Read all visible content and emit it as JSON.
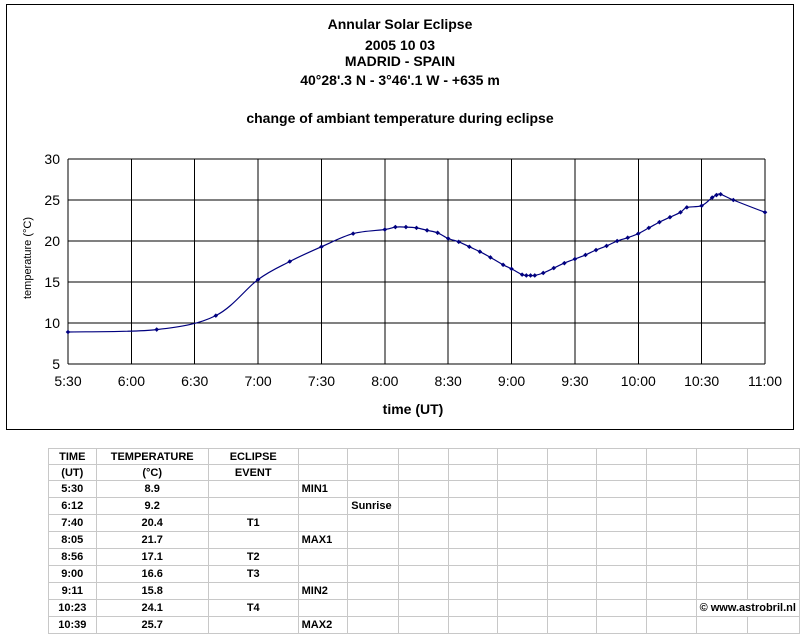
{
  "chart_data": {
    "type": "line",
    "title_lines": [
      "Annular Solar Eclipse",
      "2005 10 03",
      "MADRID - SPAIN",
      "40°28'.3 N - 3°46'.1 W - +635 m"
    ],
    "subtitle": "change of ambiant temperature during eclipse",
    "xlabel": "time (UT)",
    "ylabel": "temperature (°C)",
    "x_ticks": [
      "5:30",
      "6:00",
      "6:30",
      "7:00",
      "7:30",
      "8:00",
      "8:30",
      "9:00",
      "9:30",
      "10:00",
      "10:30",
      "11:00"
    ],
    "xlim": [
      "5:30",
      "11:00"
    ],
    "ylim": [
      5,
      30
    ],
    "y_ticks": [
      5,
      10,
      15,
      20,
      25,
      30
    ],
    "grid": true,
    "legend": "none",
    "series_color": "#00007f",
    "series": [
      {
        "x": [
          "5:30",
          "6:12",
          "6:40",
          "7:00",
          "7:15",
          "7:30",
          "7:45",
          "8:00",
          "8:05",
          "8:10",
          "8:15",
          "8:20",
          "8:25",
          "8:30",
          "8:35",
          "8:40",
          "8:45",
          "8:50",
          "8:56",
          "9:00",
          "9:05",
          "9:07",
          "9:09",
          "9:11",
          "9:15",
          "9:20",
          "9:25",
          "9:30",
          "9:35",
          "9:40",
          "9:45",
          "9:50",
          "9:55",
          "10:00",
          "10:05",
          "10:10",
          "10:15",
          "10:20",
          "10:23",
          "10:30",
          "10:35",
          "10:37",
          "10:39",
          "10:45",
          "11:00"
        ],
        "y": [
          8.9,
          9.2,
          10.9,
          15.3,
          17.5,
          19.3,
          20.9,
          21.4,
          21.7,
          21.7,
          21.6,
          21.3,
          21.0,
          20.3,
          19.9,
          19.3,
          18.7,
          18.0,
          17.1,
          16.6,
          15.9,
          15.8,
          15.8,
          15.8,
          16.1,
          16.7,
          17.3,
          17.8,
          18.3,
          18.9,
          19.4,
          20.0,
          20.4,
          20.9,
          21.6,
          22.3,
          22.9,
          23.5,
          24.1,
          24.3,
          25.3,
          25.6,
          25.7,
          25.0,
          23.5
        ]
      }
    ]
  },
  "table": {
    "header": {
      "time": [
        "TIME",
        "(UT)"
      ],
      "temperature": [
        "TEMPERATURE",
        "(°C)"
      ],
      "event": [
        "ECLIPSE",
        "EVENT"
      ]
    },
    "rows": [
      {
        "time": "5:30",
        "temp": "8.9",
        "event": "",
        "mark": "MIN1",
        "note": ""
      },
      {
        "time": "6:12",
        "temp": "9.2",
        "event": "",
        "mark": "",
        "note": "Sunrise"
      },
      {
        "time": "7:40",
        "temp": "20.4",
        "event": "T1",
        "mark": "",
        "note": ""
      },
      {
        "time": "8:05",
        "temp": "21.7",
        "event": "",
        "mark": "MAX1",
        "note": ""
      },
      {
        "time": "8:56",
        "temp": "17.1",
        "event": "T2",
        "mark": "",
        "note": ""
      },
      {
        "time": "9:00",
        "temp": "16.6",
        "event": "T3",
        "mark": "",
        "note": ""
      },
      {
        "time": "9:11",
        "temp": "15.8",
        "event": "",
        "mark": "MIN2",
        "note": ""
      },
      {
        "time": "10:23",
        "temp": "24.1",
        "event": "T4",
        "mark": "",
        "note": ""
      },
      {
        "time": "10:39",
        "temp": "25.7",
        "event": "",
        "mark": "MAX2",
        "note": ""
      }
    ],
    "copyright": "© www.astrobril.nl"
  }
}
